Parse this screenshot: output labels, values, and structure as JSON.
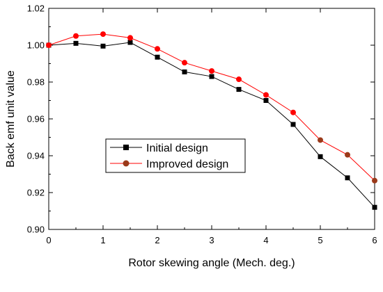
{
  "chart_data": {
    "type": "line",
    "title": "",
    "xlabel": "Rotor skewing angle (Mech. deg.)",
    "ylabel": "Back emf unit value",
    "xlim": [
      0,
      6
    ],
    "ylim": [
      0.9,
      1.02
    ],
    "xticks": [
      "0",
      "1",
      "2",
      "3",
      "4",
      "5",
      "6"
    ],
    "yticks": [
      "0.90",
      "0.92",
      "0.94",
      "0.96",
      "0.98",
      "1.00",
      "1.02"
    ],
    "x": [
      0,
      0.5,
      1,
      1.5,
      2,
      2.5,
      3,
      3.5,
      4,
      4.5,
      5,
      5.5,
      6
    ],
    "series": [
      {
        "name": "Initial design",
        "marker": "square",
        "line_color": "#000000",
        "marker_color": "#000000",
        "values": [
          1.0,
          1.001,
          0.9995,
          1.0015,
          0.9935,
          0.9855,
          0.983,
          0.976,
          0.97,
          0.957,
          0.9395,
          0.928,
          0.912
        ]
      },
      {
        "name": "Improved design",
        "marker": "circle",
        "line_color": "#ff0000",
        "marker_color": "#ff0000",
        "late_marker_color": "#9b3a1a",
        "values": [
          1.0,
          1.005,
          1.006,
          1.004,
          0.998,
          0.9905,
          0.986,
          0.9815,
          0.973,
          0.9635,
          0.9485,
          0.9405,
          0.9265
        ]
      }
    ],
    "legend": {
      "placement": "center-left",
      "framed": true
    },
    "grid": false
  }
}
